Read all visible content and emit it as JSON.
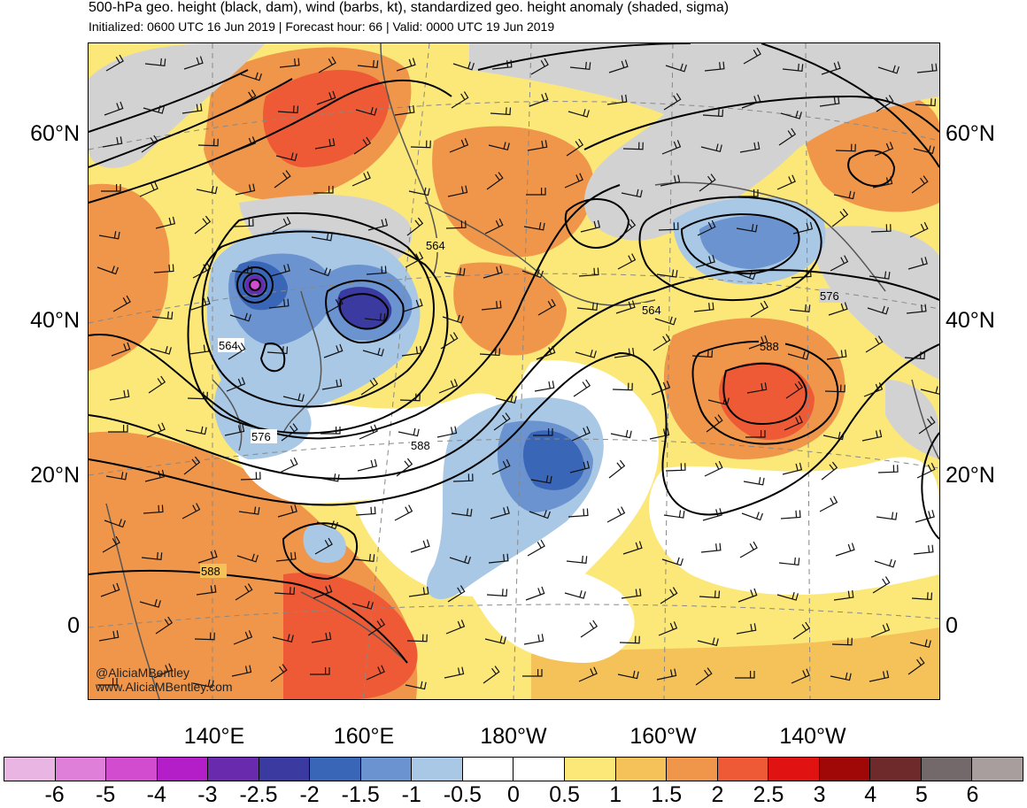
{
  "title": "500-hPa geo. height (black, dam), wind (barbs, kt), standardized geo. height anomaly (shaded, sigma)",
  "subtitle": "Initialized: 0600 UTC 16 Jun 2019 | Forecast hour: 66 | Valid: 0000 UTC 19 Jun 2019",
  "lat_labels": [
    "60°N",
    "40°N",
    "20°N",
    "0"
  ],
  "lon_labels": [
    "140°E",
    "160°E",
    "180°W",
    "160°W",
    "140°W"
  ],
  "contour_labels": [
    "564",
    "564",
    "576",
    "588",
    "588",
    "564",
    "576",
    "588"
  ],
  "watermark": [
    "@AliciaMBentley",
    "www.AliciaMBentley.com"
  ],
  "colorbar": {
    "labels": [
      "-6",
      "-5",
      "-4",
      "-3",
      "-2.5",
      "-2",
      "-1.5",
      "-1",
      "-0.5",
      "0",
      "0.5",
      "1",
      "1.5",
      "2",
      "2.5",
      "3",
      "4",
      "5",
      "6"
    ],
    "colors": [
      "#e9b6e3",
      "#e07fd9",
      "#d24cd0",
      "#b41ec8",
      "#6a2aae",
      "#3a3aa0",
      "#3a66b8",
      "#6b93cf",
      "#a8c8e6",
      "#ffffff",
      "#ffffff",
      "#fbe879",
      "#f5c25a",
      "#f0964a",
      "#ee5a35",
      "#e01212",
      "#a00808",
      "#6e2a2a",
      "#74696a",
      "#a89e9e"
    ]
  },
  "colors": {
    "frame": "#000000",
    "land_gray": "#d2d2d2",
    "contour": "#000000",
    "graticule": "#888888"
  }
}
